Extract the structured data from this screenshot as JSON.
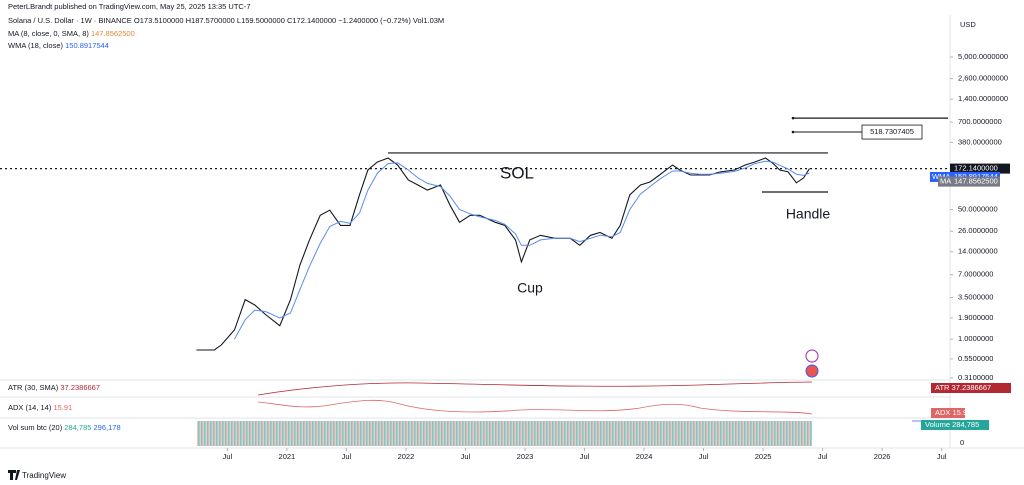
{
  "header": {
    "publisher": "PeterLBrandt published on TradingView.com, May 25, 2025 13:35 UTC-7",
    "symbol_info": "· 1W · BINANCE",
    "ohlc": "O173.5100000  H187.5700000  L159.5000000  C172.1400000  −1.2400000 (−0.72%)  Vol1.03M",
    "ma_legend": "MA (8, close, 0, SMA, 8)",
    "ma_value": "147.8562500",
    "currency": "USD",
    "footer": "TradingView"
  },
  "chart_data": {
    "type": "line",
    "title": "SOL",
    "annotations": [
      "Cup",
      "Handle"
    ],
    "log_scale": true,
    "x": [
      2020.24,
      2020.39,
      2020.45,
      2020.56,
      2020.65,
      2020.73,
      2020.82,
      2020.94,
      2021.03,
      2021.11,
      2021.19,
      2021.28,
      2021.36,
      2021.45,
      2021.53,
      2021.61,
      2021.68,
      2021.76,
      2021.85,
      2021.93,
      2022.02,
      2022.1,
      2022.18,
      2022.29,
      2022.37,
      2022.45,
      2022.54,
      2022.62,
      2022.75,
      2022.83,
      2022.92,
      2022.97,
      2023.04,
      2023.13,
      2023.25,
      2023.38,
      2023.46,
      2023.55,
      2023.63,
      2023.73,
      2023.8,
      2023.88,
      2023.97,
      2024.05,
      2024.13,
      2024.24,
      2024.3,
      2024.39,
      2024.47,
      2024.55,
      2024.64,
      2024.76,
      2024.85,
      2024.93,
      2025.02,
      2025.08,
      2025.14,
      2025.21,
      2025.28,
      2025.34,
      2025.39
    ],
    "series": [
      {
        "name": "Solana / U.S. Dollar",
        "color": "#131722",
        "values": [
          0.72,
          0.72,
          0.84,
          1.32,
          3.3,
          2.8,
          2.1,
          1.5,
          3.3,
          9.4,
          20,
          42,
          49,
          31,
          31,
          78,
          165,
          210,
          237,
          192,
          122,
          105,
          90,
          105,
          57,
          34,
          42,
          42,
          34,
          31,
          20,
          10.3,
          20,
          23,
          21,
          21,
          17,
          23,
          25,
          21,
          31,
          78,
          105,
          115,
          142,
          192,
          165,
          142,
          142,
          142,
          156,
          165,
          192,
          210,
          237,
          204,
          165,
          156,
          112,
          130,
          172.14
        ]
      },
      {
        "name": "WMA (18, close)",
        "color": "#5b8def",
        "values": [
          null,
          null,
          null,
          1.0,
          1.8,
          2.4,
          2.3,
          1.9,
          2.2,
          4.5,
          9,
          18,
          30,
          35,
          33,
          45,
          90,
          150,
          200,
          205,
          165,
          130,
          110,
          100,
          75,
          50,
          44,
          40,
          36,
          32,
          24,
          17,
          17,
          20,
          21,
          21,
          19,
          21,
          23,
          22,
          25,
          50,
          80,
          100,
          125,
          160,
          160,
          150,
          145,
          145,
          150,
          158,
          175,
          200,
          215,
          210,
          190,
          170,
          145,
          140,
          150.8917544
        ]
      }
    ],
    "xlim": [
      2018.59,
      2026.57
    ],
    "xticks": [
      {
        "value": 2020.5,
        "label": "Jul"
      },
      2021,
      {
        "value": 2021.5,
        "label": "Jul"
      },
      2022,
      {
        "value": 2022.5,
        "label": "Jul"
      },
      2023,
      {
        "value": 2023.5,
        "label": "Jul"
      },
      2024,
      {
        "value": 2024.5,
        "label": "Jul"
      },
      2025,
      {
        "value": 2025.5,
        "label": "Jul"
      },
      2026,
      {
        "value": 2026.5,
        "label": "Jul"
      }
    ],
    "ylim": [
      0.3,
      11300
    ],
    "yticks": [
      {
        "value": 5000,
        "label": "5,000.0000000"
      },
      {
        "value": 2600,
        "label": "2,600.0000000"
      },
      {
        "value": 1400,
        "label": "1,400.0000000"
      },
      {
        "value": 700,
        "label": "700.0000000"
      },
      {
        "value": 380,
        "label": "380.0000000"
      },
      {
        "value": 50,
        "label": "50.0000000"
      },
      {
        "value": 26,
        "label": "26.0000000"
      },
      {
        "value": 14,
        "label": "14.0000000"
      },
      {
        "value": 7,
        "label": "7.0000000"
      },
      {
        "value": 3.5,
        "label": "3.5000000"
      },
      {
        "value": 1.9,
        "label": "1.9000000"
      },
      {
        "value": 1,
        "label": "1.0000000"
      },
      {
        "value": 0.55,
        "label": "0.5500000"
      },
      {
        "value": 0.31,
        "label": "0.3100000"
      }
    ],
    "levels": [
      276,
      85,
      790
    ],
    "target": {
      "value": 518.7307405,
      "label": "518.7307405"
    },
    "price_tag": {
      "value": 172.14,
      "label": "172.1400000"
    },
    "wma_tag": {
      "tag": "WMA",
      "value": 150.8917544,
      "label": "150.8917544"
    },
    "ma_tag": {
      "tag": "MA",
      "value": 147.85625,
      "label": "147.8562500"
    }
  },
  "indicators": {
    "atr_legend": "ATR (30, SMA)",
    "atr_value": "37.2386667",
    "atr_tag": "ATR",
    "adx_legend": "ADX (14, 14)",
    "adx_value": "15.91",
    "adx_tag": "ADX",
    "vol_legend": "Vol sum btc (20)",
    "vol_value": "284,785",
    "vol_value2": "296,178",
    "vol_tag": "Volume",
    "vol_axis": "0"
  }
}
